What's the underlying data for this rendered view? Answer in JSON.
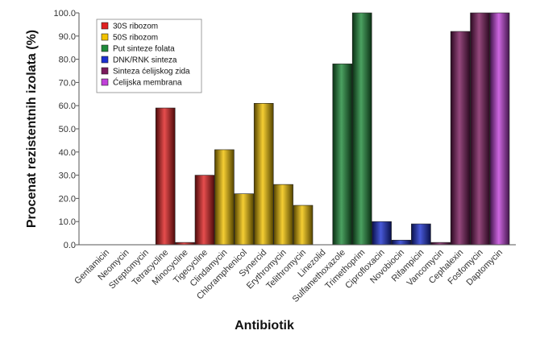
{
  "chart_data": {
    "type": "bar",
    "title": "",
    "xlabel": "Antibiotik",
    "ylabel": "Procenat rezistentnih izolata (%)",
    "ylim": [
      0,
      100
    ],
    "yticks": [
      "0.0",
      "10.0",
      "20.0",
      "30.0",
      "40.0",
      "50.0",
      "60.0",
      "70.0",
      "80.0",
      "90.0",
      "100.0"
    ],
    "grid": false,
    "legend_position": "top-left",
    "categories": [
      "Gentamicin",
      "Neomycin",
      "Streptomycin",
      "Tetracycline",
      "Minocycline",
      "Tigecycline",
      "Clindamycin",
      "Chloramphenicol",
      "Synercid",
      "Erythromycin",
      "Telithromycin",
      "Linezolid",
      "Sulfamethoxazole",
      "Trimethoprim",
      "Ciprofloxacin",
      "Novobiocin",
      "Rifampicin",
      "Vancomycin",
      "Cephalexin",
      "Fosfomycin",
      "Daptomycin"
    ],
    "values": [
      0,
      0,
      0,
      59,
      1,
      30,
      41,
      22,
      61,
      26,
      17,
      0,
      78,
      100,
      10,
      2,
      9,
      1,
      92,
      100,
      100
    ],
    "groups": [
      0,
      0,
      0,
      0,
      0,
      0,
      1,
      1,
      1,
      1,
      1,
      1,
      2,
      2,
      3,
      3,
      3,
      4,
      4,
      4,
      5
    ],
    "legend": [
      {
        "label": "30S ribozom",
        "color": "#e02020"
      },
      {
        "label": "50S ribozom",
        "color": "#f2c200"
      },
      {
        "label": "Put sinteze folata",
        "color": "#1e8a3a"
      },
      {
        "label": "DNK/RNK sinteza",
        "color": "#1a2fd0"
      },
      {
        "label": "Sinteza ćelijskog zida",
        "color": "#7a1a5c"
      },
      {
        "label": "Ćelijska membrana",
        "color": "#c040d8"
      }
    ]
  }
}
